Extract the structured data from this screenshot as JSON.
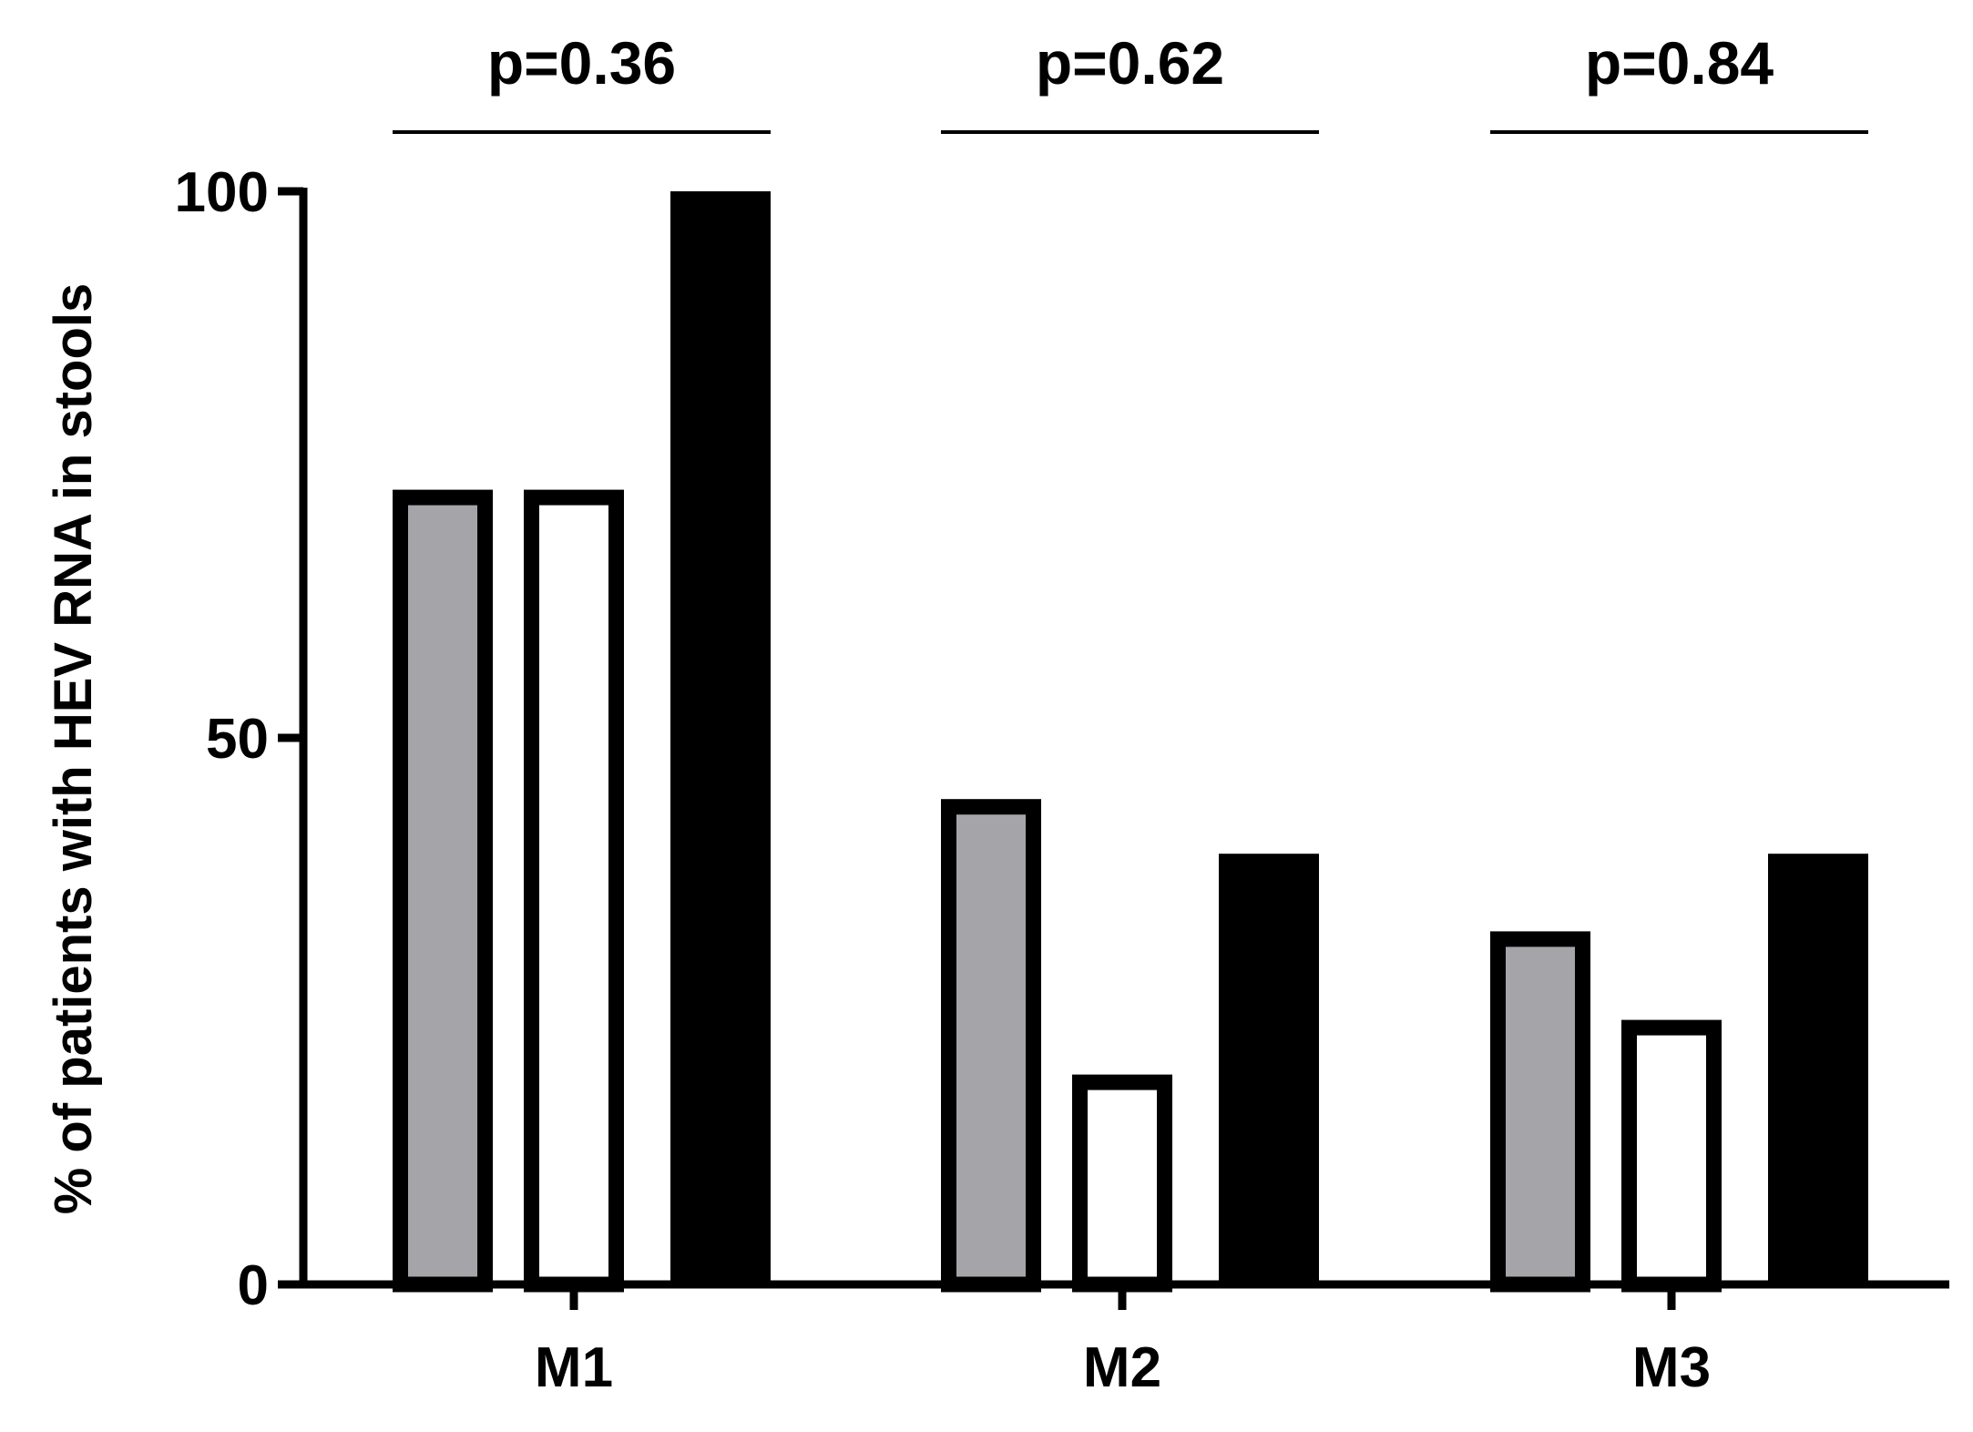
{
  "chart_data": {
    "type": "bar",
    "title": "",
    "xlabel": "",
    "ylabel": "% of patients with HEV RNA in stools",
    "ylim": [
      0,
      100
    ],
    "yticks": [
      0,
      50,
      100
    ],
    "categories": [
      "M1",
      "M2",
      "M3"
    ],
    "series": [
      {
        "values": [
          72.7,
          44.4,
          32.3
        ],
        "fill": "#a5a4a8",
        "outlined": true
      },
      {
        "values": [
          72.7,
          19.2,
          24.2
        ],
        "fill": "#ffffff",
        "outlined": true
      },
      {
        "values": [
          100,
          39.4,
          39.4
        ],
        "fill": "#000000",
        "outlined": false
      }
    ],
    "annotations": [
      "p=0.36",
      "p=0.62",
      "p=0.84"
    ],
    "grid": false,
    "legend": "none"
  }
}
